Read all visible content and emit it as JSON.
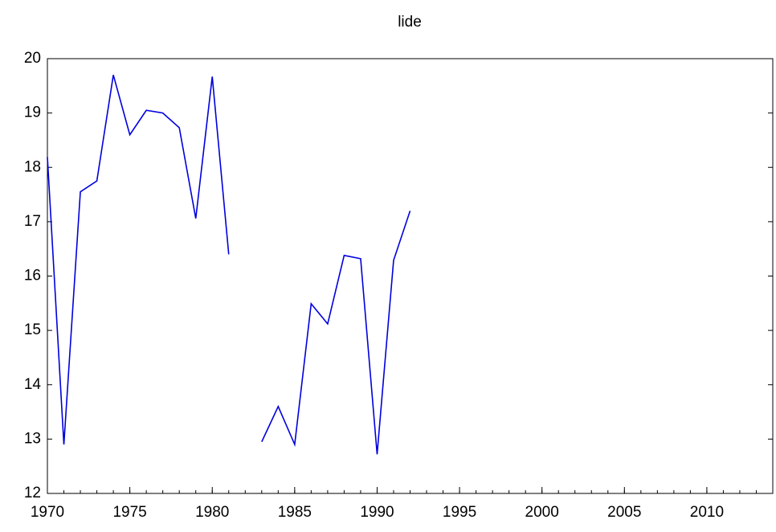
{
  "chart_data": {
    "type": "line",
    "title": "lide",
    "x": [
      1970,
      1971,
      1972,
      1973,
      1974,
      1975,
      1976,
      1977,
      1978,
      1979,
      1980,
      1981,
      1982,
      1983,
      1984,
      1985,
      1986,
      1987,
      1988,
      1989,
      1990,
      1991,
      1992
    ],
    "series": [
      {
        "name": "lide",
        "color": "#0000dd",
        "values": [
          18.19,
          12.9,
          17.55,
          17.75,
          19.7,
          18.6,
          19.05,
          19.0,
          18.73,
          17.06,
          19.67,
          16.4,
          null,
          12.95,
          13.6,
          12.9,
          15.49,
          15.12,
          16.38,
          16.32,
          12.72,
          16.29,
          17.2
        ]
      }
    ],
    "xlim": [
      1970,
      2014
    ],
    "xticks": [
      1970,
      1975,
      1980,
      1985,
      1990,
      1995,
      2000,
      2005,
      2010
    ],
    "ylim": [
      12,
      20
    ],
    "yticks": [
      12,
      13,
      14,
      15,
      16,
      17,
      18,
      19,
      20
    ],
    "grid": false
  }
}
